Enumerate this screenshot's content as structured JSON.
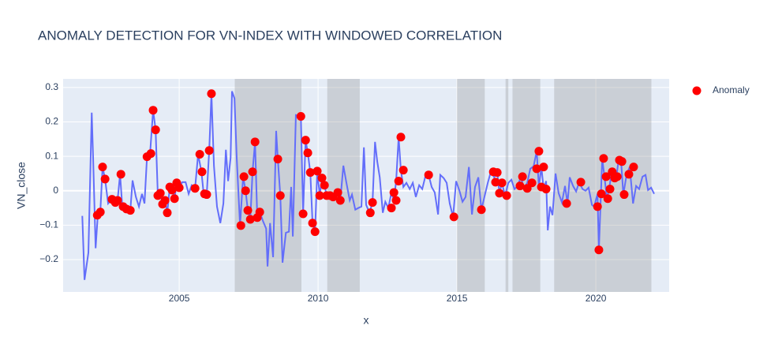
{
  "chart_data": {
    "type": "line",
    "title": "ANOMALY DETECTION FOR VN-INDEX WITH WINDOWED CORRELATION",
    "xlabel": "x",
    "ylabel": "VN_close",
    "xlim": [
      2000.82,
      2022.64
    ],
    "ylim": [
      -0.294,
      0.325
    ],
    "xticks": [
      2005,
      2010,
      2015,
      2020
    ],
    "yticks": [
      {
        "value": -0.2,
        "label": "−0.2"
      },
      {
        "value": -0.1,
        "label": "−0.1"
      },
      0,
      0.1,
      0.2,
      0.3
    ],
    "grid": true,
    "legend": "right",
    "shaded_ranges": [
      [
        2007.0,
        2009.4
      ],
      [
        2010.33,
        2011.5
      ],
      [
        2015.0,
        2016.0
      ],
      [
        2016.75,
        2016.85
      ],
      [
        2017.0,
        2018.0
      ],
      [
        2018.5,
        2022.0
      ]
    ],
    "shade_color": "#8c8c8c",
    "series": [
      {
        "color": "#636efa",
        "x": [
          2001.51,
          2001.59,
          2001.73,
          2001.85,
          2001.9,
          2001.99,
          2002.07,
          2002.16,
          2002.24,
          2002.33,
          2002.44,
          2002.56,
          2002.67,
          2002.78,
          2002.87,
          2002.95,
          2003.1,
          2003.24,
          2003.32,
          2003.44,
          2003.55,
          2003.66,
          2003.75,
          2003.84,
          2003.95,
          2004.06,
          2004.15,
          2004.23,
          2004.32,
          2004.4,
          2004.49,
          2004.57,
          2004.66,
          2004.74,
          2004.83,
          2004.91,
          2005.0,
          2005.11,
          2005.23,
          2005.34,
          2005.45,
          2005.57,
          2005.68,
          2005.8,
          2005.88,
          2005.99,
          2006.08,
          2006.16,
          2006.25,
          2006.36,
          2006.48,
          2006.59,
          2006.68,
          2006.76,
          2006.85,
          2006.9,
          2006.99,
          2007.07,
          2007.19,
          2007.3,
          2007.39,
          2007.47,
          2007.56,
          2007.64,
          2007.73,
          2007.81,
          2007.9,
          2008.01,
          2008.13,
          2008.18,
          2008.27,
          2008.38,
          2008.49,
          2008.55,
          2008.64,
          2008.72,
          2008.84,
          2008.95,
          2009.03,
          2009.09,
          2009.2,
          2009.38,
          2009.46,
          2009.55,
          2009.63,
          2009.72,
          2009.8,
          2009.89,
          2009.97,
          2010.06,
          2010.14,
          2010.23,
          2010.31,
          2010.43,
          2010.54,
          2010.63,
          2010.71,
          2010.8,
          2010.91,
          2011.02,
          2011.14,
          2011.22,
          2011.34,
          2011.45,
          2011.56,
          2011.65,
          2011.73,
          2011.85,
          2011.96,
          2012.05,
          2012.13,
          2012.22,
          2012.33,
          2012.42,
          2012.53,
          2012.64,
          2012.73,
          2012.81,
          2012.9,
          2012.98,
          2013.07,
          2013.18,
          2013.3,
          2013.41,
          2013.52,
          2013.64,
          2013.75,
          2013.86,
          2013.98,
          2014.09,
          2014.2,
          2014.32,
          2014.4,
          2014.52,
          2014.63,
          2014.74,
          2014.86,
          2014.97,
          2015.09,
          2015.2,
          2015.31,
          2015.43,
          2015.54,
          2015.65,
          2015.77,
          2015.88,
          2016.0,
          2016.11,
          2016.22,
          2016.34,
          2016.45,
          2016.53,
          2016.62,
          2016.73,
          2016.85,
          2016.96,
          2017.07,
          2017.19,
          2017.3,
          2017.41,
          2017.53,
          2017.64,
          2017.76,
          2017.87,
          2017.95,
          2018.04,
          2018.12,
          2018.21,
          2018.27,
          2018.35,
          2018.44,
          2018.55,
          2018.66,
          2018.78,
          2018.89,
          2018.98,
          2019.06,
          2019.18,
          2019.29,
          2019.4,
          2019.52,
          2019.63,
          2019.74,
          2019.86,
          2019.94,
          2020.06,
          2020.11,
          2020.23,
          2020.31,
          2020.4,
          2020.48,
          2020.57,
          2020.65,
          2020.74,
          2020.82,
          2020.91,
          2020.99,
          2021.11,
          2021.22,
          2021.34,
          2021.45,
          2021.56,
          2021.68,
          2021.79,
          2021.88,
          2021.99,
          2022.1
        ],
        "values": [
          -0.073,
          -0.259,
          -0.18,
          0.227,
          0.096,
          -0.167,
          -0.069,
          -0.06,
          0.069,
          0.034,
          -0.037,
          -0.025,
          -0.037,
          -0.028,
          0.048,
          -0.046,
          -0.053,
          -0.057,
          0.03,
          -0.018,
          -0.046,
          -0.009,
          -0.037,
          0.099,
          0.108,
          0.234,
          0.177,
          -0.014,
          -0.007,
          -0.039,
          -0.028,
          -0.064,
          0.011,
          0.002,
          -0.023,
          0.023,
          0.009,
          0.025,
          0.025,
          -0.009,
          0.016,
          0.007,
          0.106,
          0.055,
          -0.009,
          -0.011,
          0.117,
          0.282,
          0.073,
          -0.046,
          -0.094,
          -0.037,
          0.119,
          0.028,
          0.096,
          0.289,
          0.268,
          0.096,
          -0.101,
          0.041,
          0,
          -0.057,
          -0.083,
          0.055,
          0.142,
          -0.078,
          -0.062,
          -0.087,
          -0.11,
          -0.22,
          -0.094,
          -0.193,
          0.174,
          0.092,
          -0.014,
          -0.209,
          -0.122,
          -0.119,
          0.011,
          -0.133,
          0.22,
          0.216,
          -0.067,
          0.147,
          0.11,
          0.053,
          -0.094,
          -0.119,
          0.057,
          -0.014,
          0.037,
          0.016,
          -0.014,
          -0.014,
          -0.018,
          -0.014,
          -0.005,
          -0.028,
          0.073,
          0.023,
          -0.028,
          -0.011,
          -0.055,
          -0.05,
          -0.046,
          0.126,
          -0.041,
          -0.064,
          -0.034,
          0.142,
          0.085,
          0.039,
          -0.064,
          -0.032,
          -0.05,
          -0.005,
          -0.028,
          0.028,
          0.156,
          0.06,
          0.011,
          0.023,
          0.005,
          0.023,
          -0.018,
          0.016,
          0.005,
          0.041,
          0.046,
          0.011,
          -0.005,
          -0.069,
          0.046,
          0.037,
          0.023,
          -0.037,
          -0.076,
          0.028,
          0,
          -0.032,
          -0.018,
          0.069,
          -0.069,
          0.011,
          0.039,
          -0.055,
          -0.014,
          0.023,
          0.055,
          0.039,
          0.053,
          -0.007,
          0.023,
          -0.014,
          0.023,
          0.032,
          0.005,
          0.014,
          0.041,
          0.007,
          0.023,
          0.064,
          0.071,
          0.115,
          0.011,
          0.069,
          0.005,
          0.028,
          -0.115,
          -0.046,
          -0.071,
          0.05,
          -0.007,
          -0.034,
          0.014,
          -0.037,
          0.039,
          0.014,
          -0.002,
          0.025,
          0.005,
          0,
          0.009,
          -0.041,
          -0.046,
          -0.009,
          -0.172,
          0.094,
          0.041,
          -0.023,
          0.005,
          0.055,
          0.037,
          0.041,
          0.089,
          0.085,
          -0.011,
          0.048,
          0.069,
          -0.037,
          0.014,
          0.005,
          0.041,
          0.046,
          0.002,
          0.009,
          -0.009
        ]
      },
      {
        "name": "Anomaly",
        "color": "#ff0000",
        "x": [
          2002.05,
          2002.16,
          2002.24,
          2002.33,
          2002.58,
          2002.7,
          2002.78,
          2002.9,
          2002.98,
          2003.1,
          2003.24,
          2003.84,
          2003.98,
          2004.06,
          2004.15,
          2004.23,
          2004.32,
          2004.4,
          2004.49,
          2004.57,
          2004.66,
          2004.74,
          2004.83,
          2004.91,
          2005.0,
          2005.57,
          2005.74,
          2005.82,
          2005.91,
          2005.99,
          2006.08,
          2006.16,
          2007.22,
          2007.33,
          2007.39,
          2007.47,
          2007.56,
          2007.64,
          2007.73,
          2007.81,
          2007.9,
          2008.55,
          2008.64,
          2009.38,
          2009.46,
          2009.55,
          2009.63,
          2009.72,
          2009.8,
          2009.89,
          2009.97,
          2010.06,
          2010.14,
          2010.23,
          2010.31,
          2010.43,
          2010.54,
          2010.71,
          2010.8,
          2011.88,
          2011.96,
          2012.64,
          2012.73,
          2012.81,
          2012.9,
          2012.98,
          2013.07,
          2013.98,
          2014.89,
          2015.88,
          2016.31,
          2016.39,
          2016.45,
          2016.53,
          2016.62,
          2016.79,
          2017.27,
          2017.36,
          2017.53,
          2017.7,
          2017.87,
          2017.95,
          2018.04,
          2018.12,
          2018.21,
          2018.95,
          2019.46,
          2020.06,
          2020.11,
          2020.2,
          2020.28,
          2020.37,
          2020.43,
          2020.51,
          2020.59,
          2020.68,
          2020.77,
          2020.85,
          2020.94,
          2021.02,
          2021.19,
          2021.36
        ],
        "values": [
          -0.071,
          -0.062,
          0.069,
          0.034,
          -0.025,
          -0.034,
          -0.028,
          0.048,
          -0.046,
          -0.053,
          -0.057,
          0.099,
          0.108,
          0.234,
          0.177,
          -0.014,
          -0.007,
          -0.039,
          -0.028,
          -0.064,
          0.011,
          0.002,
          -0.023,
          0.023,
          0.009,
          0.007,
          0.106,
          0.055,
          -0.009,
          -0.011,
          0.117,
          0.282,
          -0.101,
          0.041,
          0,
          -0.057,
          -0.083,
          0.055,
          0.142,
          -0.078,
          -0.062,
          0.092,
          -0.014,
          0.216,
          -0.067,
          0.147,
          0.11,
          0.053,
          -0.094,
          -0.119,
          0.057,
          -0.014,
          0.037,
          0.016,
          -0.014,
          -0.014,
          -0.018,
          -0.005,
          -0.028,
          -0.064,
          -0.034,
          -0.05,
          -0.005,
          -0.028,
          0.028,
          0.156,
          0.06,
          0.046,
          -0.076,
          -0.055,
          0.055,
          0.025,
          0.053,
          -0.007,
          0.023,
          -0.014,
          0.014,
          0.041,
          0.007,
          0.023,
          0.064,
          0.115,
          0.011,
          0.069,
          0.005,
          -0.037,
          0.025,
          -0.046,
          -0.172,
          -0.009,
          0.094,
          0.041,
          -0.023,
          0.005,
          0.055,
          0.037,
          0.041,
          0.089,
          0.085,
          -0.011,
          0.048,
          0.069
        ]
      }
    ]
  }
}
